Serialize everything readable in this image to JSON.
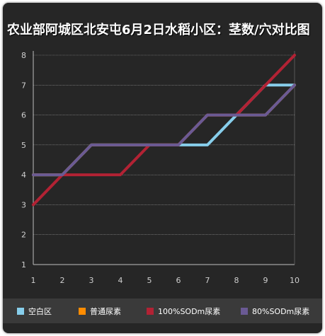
{
  "chart_data": {
    "type": "line",
    "title": "农业部阿城区北安屯6月2日水稻小区：茎数/穴对比图",
    "xlabel": "",
    "ylabel": "",
    "x": [
      1,
      2,
      3,
      4,
      5,
      6,
      7,
      8,
      9,
      10
    ],
    "xlim": [
      1,
      10
    ],
    "ylim": [
      1,
      8
    ],
    "yticks": [
      1,
      2,
      3,
      4,
      5,
      6,
      7,
      8
    ],
    "grid": true,
    "legend_position": "bottom",
    "series": [
      {
        "name": "空白区",
        "color": "#87ceeb",
        "values": [
          4,
          4,
          5,
          5,
          5,
          5,
          5,
          6,
          7,
          7
        ]
      },
      {
        "name": "普通尿素",
        "color": "#ff8c00",
        "values": [
          4,
          4,
          5,
          5,
          5,
          5,
          6,
          6,
          6,
          7
        ]
      },
      {
        "name": "100%SODm尿素",
        "color": "#b22234",
        "values": [
          3,
          4,
          4,
          4,
          5,
          5,
          6,
          6,
          7,
          8
        ]
      },
      {
        "name": "80%SODm尿素",
        "color": "#6a5a94",
        "values": [
          4,
          4,
          5,
          5,
          5,
          5,
          6,
          6,
          6,
          7
        ]
      }
    ]
  }
}
